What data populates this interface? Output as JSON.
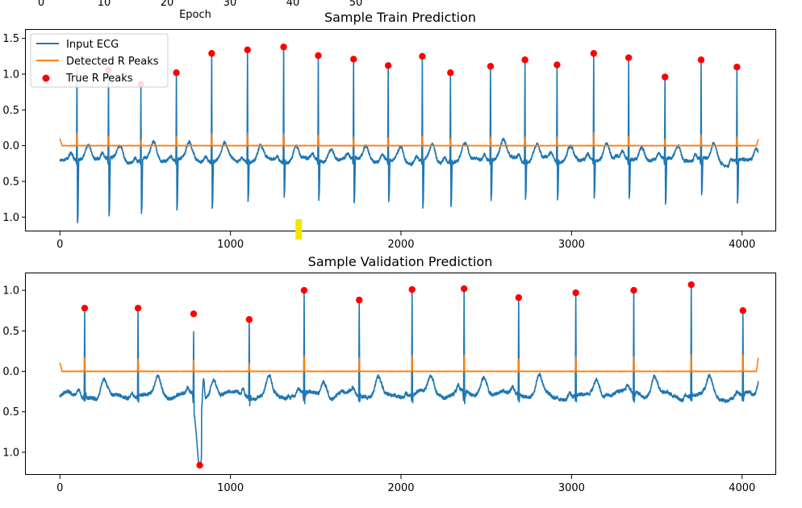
{
  "colors": {
    "ecg": "#1f77b4",
    "detected": "#ff7f0e",
    "true_peaks": "#ff0000",
    "highlight": "#f2e600"
  },
  "top_strip": {
    "tick_labels": [
      "0",
      "10",
      "20",
      "30",
      "40",
      "50"
    ],
    "xlabel": "Epoch"
  },
  "legend": {
    "placement": "upper-left",
    "entries": [
      "Input ECG",
      "Detected R Peaks",
      "True R Peaks"
    ]
  },
  "chart_data": [
    {
      "type": "line",
      "title": "Sample Train Prediction",
      "xlim": [
        -200,
        4200
      ],
      "ylim": [
        -1.2,
        1.62
      ],
      "xticks": [
        0,
        1000,
        2000,
        3000,
        4000
      ],
      "xtick_labels": [
        "0",
        "1000",
        "2000",
        "3000",
        "4000"
      ],
      "yticks": [
        -1.0,
        -0.5,
        0.0,
        0.5,
        1.0,
        1.5
      ],
      "ytick_labels": [
        "1.0",
        "0.5",
        "0.0",
        "0.5",
        "1.0",
        "1.5"
      ],
      "grid": false,
      "length": 4096,
      "series": [
        {
          "name": "Input ECG",
          "kind": "ecg",
          "baseline": -0.2,
          "peak_x": [
            100,
            285,
            475,
            683,
            890,
            1100,
            1312,
            1515,
            1722,
            1925,
            2125,
            2290,
            2525,
            2727,
            2915,
            3130,
            3335,
            3548,
            3760,
            3970
          ],
          "peak_y": [
            1.1,
            1.06,
            0.86,
            1.02,
            1.29,
            1.34,
            1.38,
            1.26,
            1.21,
            1.12,
            1.25,
            1.02,
            1.11,
            1.2,
            1.13,
            1.29,
            1.23,
            0.96,
            1.2,
            1.1
          ],
          "trough_y": [
            -1.08,
            -0.98,
            -0.95,
            -0.9,
            -0.88,
            -0.78,
            -0.72,
            -0.76,
            -0.8,
            -0.78,
            -0.87,
            -0.85,
            -0.77,
            -0.75,
            -0.76,
            -0.73,
            -0.74,
            -0.82,
            -0.69,
            -0.8
          ]
        },
        {
          "name": "Detected R Peaks",
          "kind": "detected",
          "baseline": 0.0,
          "spike_x": [
            100,
            285,
            475,
            683,
            890,
            1100,
            1312,
            1515,
            1722,
            1925,
            2125,
            2290,
            2525,
            2727,
            2915,
            3130,
            3335,
            3548,
            3760,
            3970
          ],
          "spike_y": [
            0.18,
            0.13,
            0.08,
            0.12,
            0.17,
            0.18,
            0.17,
            0.15,
            0.12,
            0.11,
            0.13,
            0.1,
            0.12,
            0.12,
            0.12,
            0.19,
            0.13,
            0.09,
            0.15,
            0.12
          ],
          "start_y": 0.1,
          "end_y": 0.1
        },
        {
          "name": "True R Peaks",
          "kind": "scatter",
          "x": [
            285,
            475,
            683,
            890,
            1100,
            1312,
            1515,
            1722,
            1925,
            2125,
            2290,
            2525,
            2727,
            2915,
            3130,
            3335,
            3548,
            3760,
            3970
          ],
          "y": [
            1.06,
            0.86,
            1.02,
            1.29,
            1.34,
            1.38,
            1.26,
            1.21,
            1.12,
            1.25,
            1.02,
            1.11,
            1.2,
            1.13,
            1.29,
            1.23,
            0.96,
            1.2,
            1.1
          ]
        }
      ],
      "highlight_x": 1400
    },
    {
      "type": "line",
      "title": "Sample Validation Prediction",
      "xlim": [
        -200,
        4200
      ],
      "ylim": [
        -1.28,
        1.21
      ],
      "xticks": [
        0,
        1000,
        2000,
        3000,
        4000
      ],
      "xtick_labels": [
        "0",
        "1000",
        "2000",
        "3000",
        "4000"
      ],
      "yticks": [
        -1.0,
        -0.5,
        0.0,
        0.5,
        1.0
      ],
      "ytick_labels": [
        "1.0",
        "0.5",
        "0.0",
        "0.5",
        "1.0"
      ],
      "grid": false,
      "length": 4096,
      "series": [
        {
          "name": "Input ECG",
          "kind": "ecg",
          "baseline": -0.3,
          "peak_x": [
            145,
            458,
            784,
            1110,
            1432,
            1755,
            2065,
            2370,
            2690,
            3025,
            3365,
            3702,
            4005
          ],
          "peak_y": [
            0.78,
            0.78,
            0.71,
            0.64,
            1.0,
            0.88,
            1.01,
            1.02,
            0.91,
            0.97,
            1.0,
            1.07,
            0.75
          ],
          "trough_y": [
            -0.36,
            -0.38,
            -0.4,
            -0.42,
            -0.4,
            -0.38,
            -0.39,
            -0.4,
            -0.38,
            -0.38,
            -0.38,
            -0.37,
            -0.37
          ]
        },
        {
          "name": "Detected R Peaks",
          "kind": "detected",
          "baseline": 0.0,
          "spike_x": [
            145,
            458,
            784,
            1110,
            1432,
            1755,
            2065,
            2370,
            2690,
            3025,
            3365,
            3702,
            4005
          ],
          "spike_y": [
            0.17,
            0.15,
            0.14,
            0.1,
            0.19,
            0.17,
            0.2,
            0.2,
            0.16,
            0.18,
            0.18,
            0.21,
            0.2
          ],
          "start_y": 0.11,
          "end_y": 0.18
        },
        {
          "name": "True R Peaks",
          "kind": "scatter",
          "x": [
            145,
            458,
            784,
            820,
            1110,
            1432,
            1755,
            2065,
            2370,
            2690,
            3025,
            3365,
            3702,
            4005
          ],
          "y": [
            0.78,
            0.78,
            0.71,
            -1.16,
            0.64,
            1.0,
            0.88,
            1.01,
            1.02,
            0.91,
            0.97,
            1.0,
            1.07,
            0.75
          ]
        }
      ],
      "dip": {
        "x": 820,
        "y": -1.16
      }
    }
  ]
}
